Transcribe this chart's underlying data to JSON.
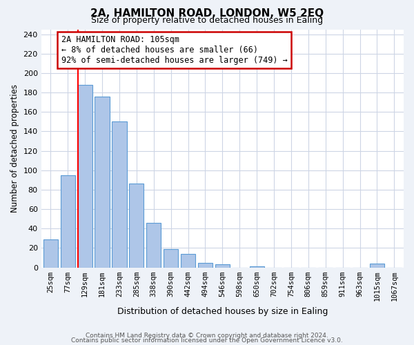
{
  "title": "2A, HAMILTON ROAD, LONDON, W5 2EQ",
  "subtitle": "Size of property relative to detached houses in Ealing",
  "xlabel": "Distribution of detached houses by size in Ealing",
  "ylabel": "Number of detached properties",
  "bar_labels": [
    "25sqm",
    "77sqm",
    "129sqm",
    "181sqm",
    "233sqm",
    "285sqm",
    "338sqm",
    "390sqm",
    "442sqm",
    "494sqm",
    "546sqm",
    "598sqm",
    "650sqm",
    "702sqm",
    "754sqm",
    "806sqm",
    "859sqm",
    "911sqm",
    "963sqm",
    "1015sqm",
    "1067sqm"
  ],
  "bar_values": [
    29,
    95,
    188,
    176,
    150,
    86,
    46,
    19,
    14,
    5,
    3,
    0,
    1,
    0,
    0,
    0,
    0,
    0,
    0,
    4,
    0
  ],
  "bar_color": "#aec6e8",
  "bar_edge_color": "#5b9bd5",
  "vline_index": 2,
  "vline_color": "red",
  "ylim": [
    0,
    245
  ],
  "yticks": [
    0,
    20,
    40,
    60,
    80,
    100,
    120,
    140,
    160,
    180,
    200,
    220,
    240
  ],
  "annotation_title": "2A HAMILTON ROAD: 105sqm",
  "annotation_line1": "← 8% of detached houses are smaller (66)",
  "annotation_line2": "92% of semi-detached houses are larger (749) →",
  "footer_line1": "Contains HM Land Registry data © Crown copyright and database right 2024.",
  "footer_line2": "Contains public sector information licensed under the Open Government Licence v3.0.",
  "background_color": "#eef2f8",
  "plot_bg_color": "#ffffff",
  "grid_color": "#cdd5e5",
  "annotation_box_color": "#ffffff",
  "annotation_box_edge": "#cc0000",
  "title_fontsize": 11,
  "subtitle_fontsize": 9,
  "ylabel_fontsize": 8.5,
  "xlabel_fontsize": 9,
  "tick_fontsize": 8,
  "xtick_fontsize": 7.5,
  "annotation_fontsize": 8.5,
  "footer_fontsize": 6.5
}
